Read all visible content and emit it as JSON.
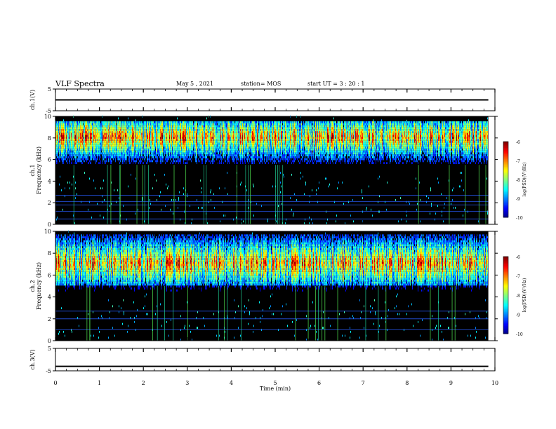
{
  "header": {
    "title": "VLF Spectra",
    "date": "May 5  , 2021",
    "station": "station= MOS",
    "start": "start  UT  =   3  : 20 : 1"
  },
  "chart_data": [
    {
      "type": "line",
      "name": "ch1-voltage",
      "ylabel": "ch.1(V)",
      "ylim": [
        -5,
        5
      ],
      "yticks": [
        "5",
        "-5"
      ],
      "x": [
        0,
        9.85
      ],
      "values": [
        0,
        0
      ]
    },
    {
      "type": "heatmap",
      "name": "ch1-spectrogram",
      "ylabel": "ch.1\nFrequency (kHz)",
      "ylim": [
        0,
        10
      ],
      "yticks": [
        "0",
        "2",
        "4",
        "6",
        "8",
        "10"
      ],
      "xlim": [
        0,
        10
      ],
      "data_end_min": 9.85,
      "band_low_khz": 5.5,
      "band_high_khz": 9.5,
      "peak_khz": 8.0,
      "lines_khz": [
        0.5,
        1.2,
        1.8,
        2.1,
        2.7
      ],
      "colorbar": {
        "label": "log(PSD)(V²/Hz)",
        "ticks": [
          "-6",
          "-7",
          "-8",
          "-9",
          "-10"
        ],
        "range": [
          -10,
          -6
        ]
      }
    },
    {
      "type": "heatmap",
      "name": "ch2-spectrogram",
      "ylabel": "ch.2\nFrequency (kHz)",
      "ylim": [
        0,
        10
      ],
      "yticks": [
        "0",
        "2",
        "4",
        "6",
        "8",
        "10"
      ],
      "xlim": [
        0,
        10
      ],
      "data_end_min": 9.85,
      "band_low_khz": 5.0,
      "band_high_khz": 9.7,
      "peak_khz": 7.0,
      "lines_khz": [
        1.0,
        2.0,
        2.7
      ],
      "colorbar": {
        "label": "log(PSD)(V²/Hz)",
        "ticks": [
          "-6",
          "-7",
          "-8",
          "-9",
          "-10"
        ],
        "range": [
          -10,
          -6
        ]
      }
    },
    {
      "type": "line",
      "name": "ch3-voltage",
      "ylabel": "ch.3(V)",
      "ylim": [
        -5,
        5
      ],
      "yticks": [
        "5",
        "-5"
      ],
      "x": [
        0,
        9.85
      ],
      "values": [
        -3,
        -3
      ]
    }
  ],
  "xaxis": {
    "label": "Time  (min)",
    "ticks": [
      "0",
      "1",
      "2",
      "3",
      "4",
      "5",
      "6",
      "7",
      "8",
      "9",
      "10"
    ],
    "xlim": [
      0,
      10
    ]
  }
}
